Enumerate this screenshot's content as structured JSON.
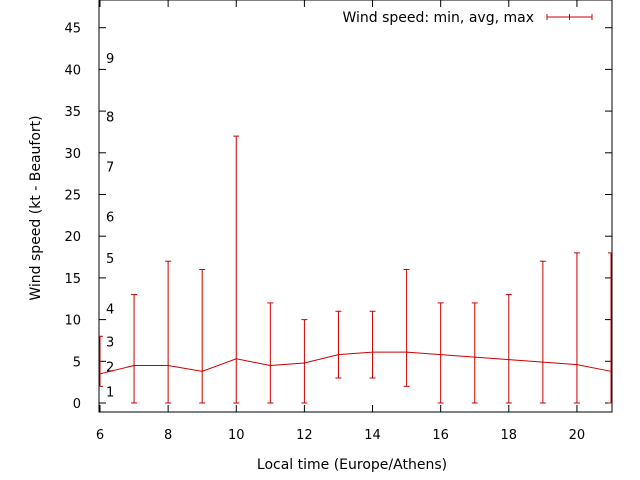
{
  "chart_data": {
    "type": "line",
    "title": "",
    "xlabel": "Local time (Europe/Athens)",
    "ylabel": "Wind speed (kt - Beaufort)",
    "xlim": [
      6,
      21
    ],
    "ylim": [
      -1,
      48
    ],
    "xticks": [
      6,
      8,
      10,
      12,
      14,
      16,
      18,
      20
    ],
    "yticks": [
      0,
      5,
      10,
      15,
      20,
      25,
      30,
      35,
      40,
      45
    ],
    "grid": false,
    "legend": {
      "position": "top-right",
      "entries": [
        "Wind speed: min, avg, max"
      ]
    },
    "beaufort_scale": [
      {
        "label": "1",
        "kt": 1
      },
      {
        "label": "2",
        "kt": 4
      },
      {
        "label": "3",
        "kt": 7
      },
      {
        "label": "4",
        "kt": 11
      },
      {
        "label": "5",
        "kt": 17
      },
      {
        "label": "6",
        "kt": 22
      },
      {
        "label": "7",
        "kt": 28
      },
      {
        "label": "8",
        "kt": 34
      },
      {
        "label": "9",
        "kt": 41
      }
    ],
    "series": [
      {
        "name": "Wind speed: min, avg, max",
        "color": "#cc0000",
        "x": [
          6,
          7,
          8,
          9,
          10,
          11,
          12,
          13,
          14,
          15,
          16,
          17,
          18,
          19,
          20,
          21
        ],
        "avg": [
          3.5,
          4.5,
          4.5,
          3.8,
          5.3,
          4.5,
          4.8,
          5.8,
          6.1,
          6.1,
          5.8,
          5.5,
          5.2,
          4.9,
          4.6,
          3.8
        ],
        "min": [
          2,
          0,
          0,
          0,
          0,
          0,
          0,
          3,
          3,
          2,
          0,
          0,
          0,
          0,
          0,
          0
        ],
        "max": [
          8,
          13,
          17,
          16,
          32,
          12,
          10,
          11,
          11,
          16,
          12,
          12,
          13,
          17,
          18,
          18
        ]
      }
    ]
  }
}
